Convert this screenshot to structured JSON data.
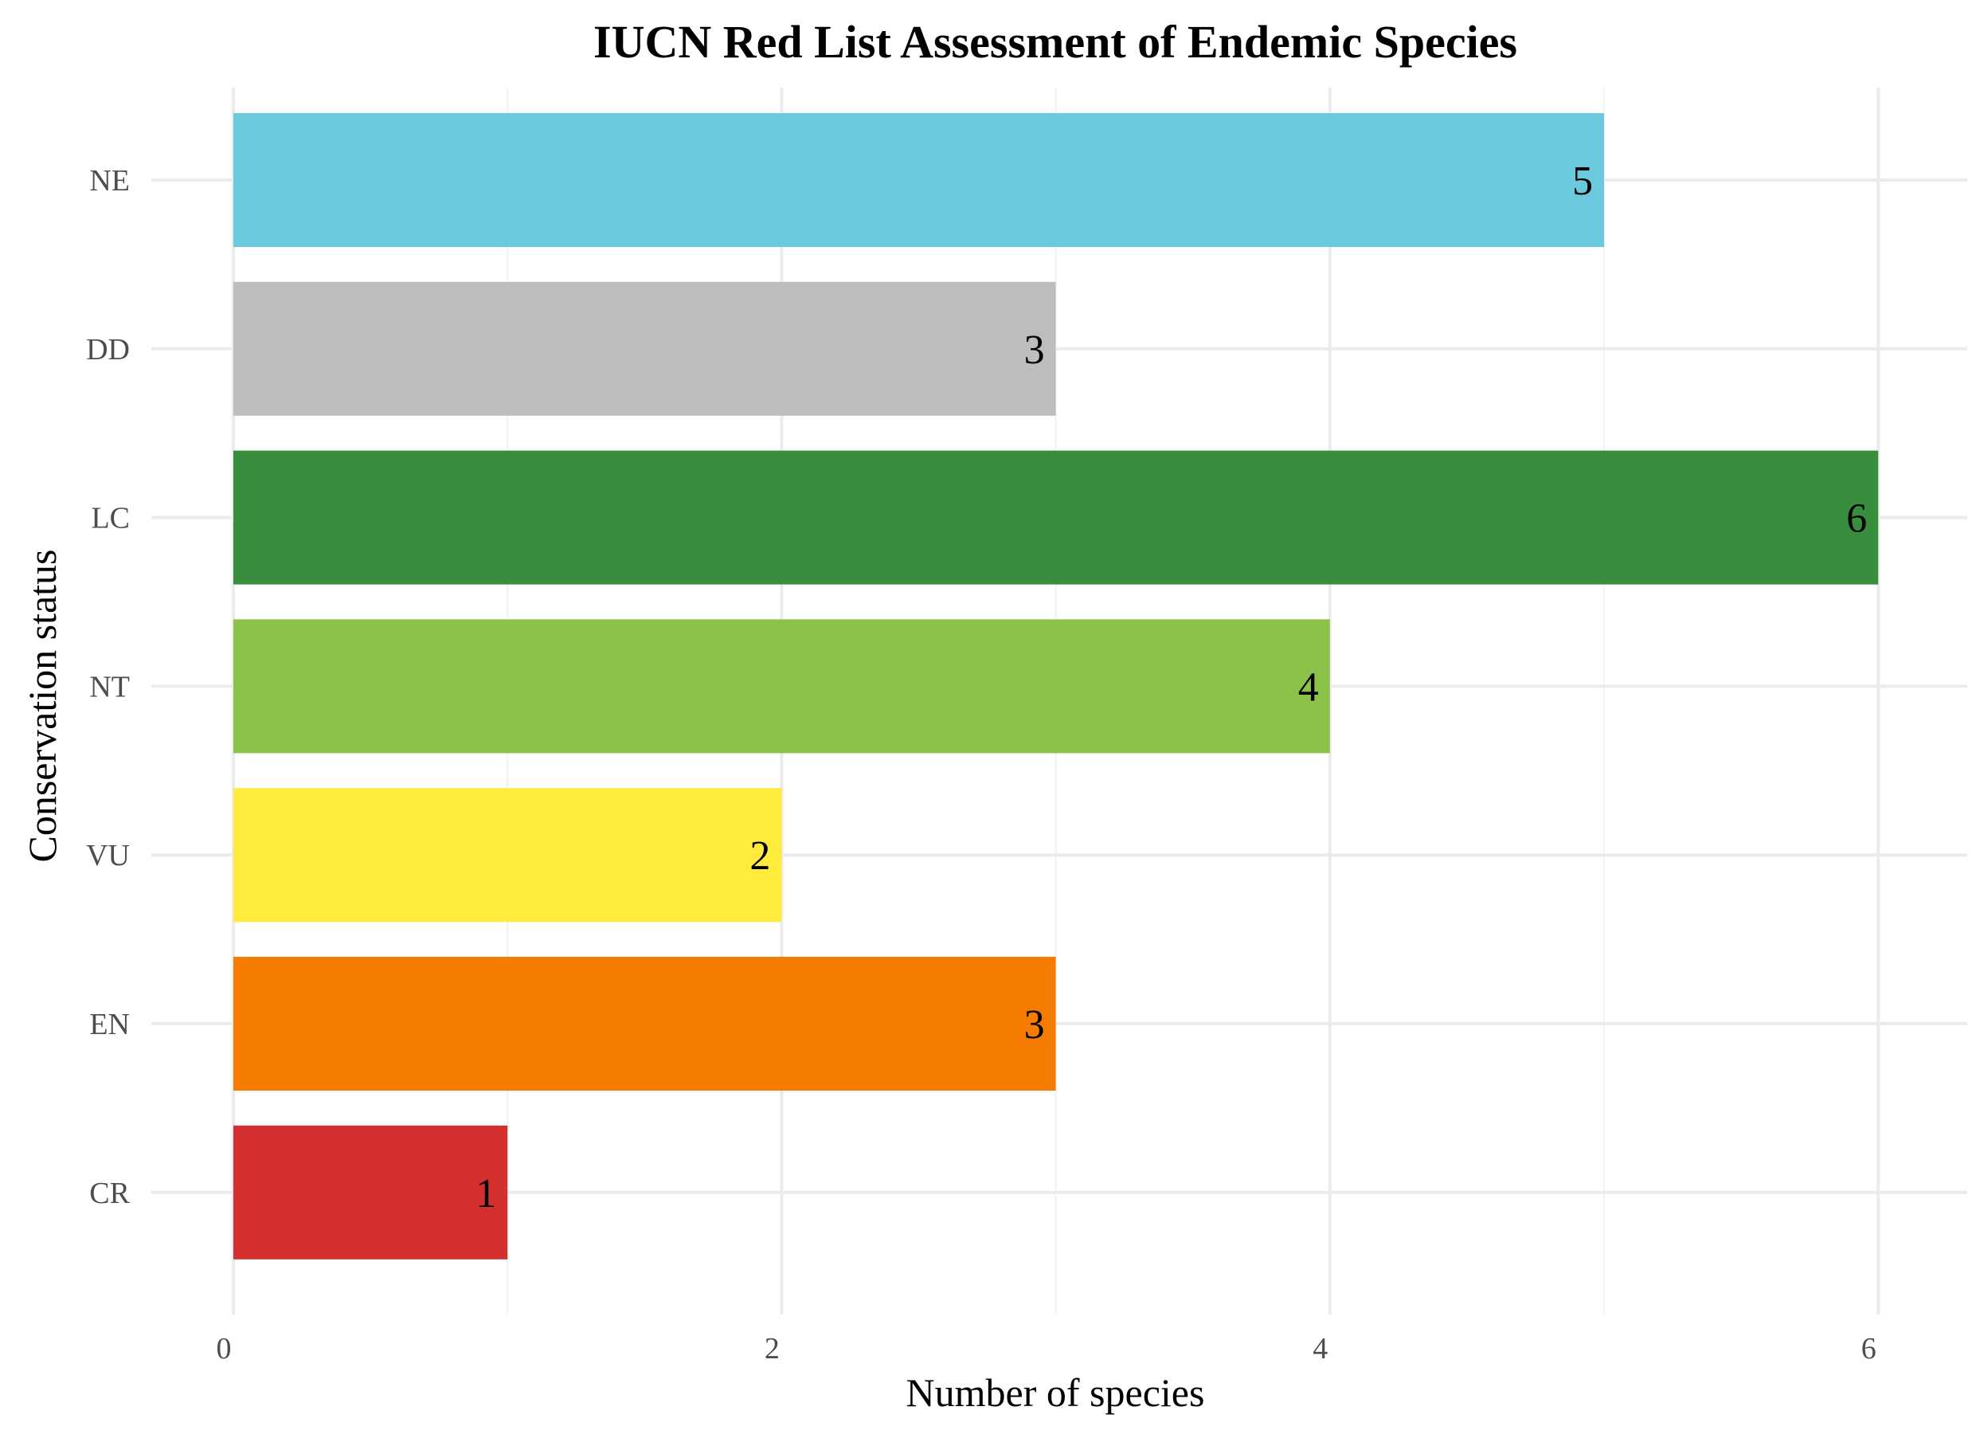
{
  "chart_data": {
    "type": "bar",
    "orientation": "horizontal",
    "title": "IUCN Red List Assessment of Endemic Species",
    "xlabel": "Number of species",
    "ylabel": "Conservation status",
    "categories": [
      "CR",
      "EN",
      "VU",
      "NT",
      "LC",
      "DD",
      "NE"
    ],
    "values": [
      1,
      3,
      2,
      4,
      6,
      3,
      5
    ],
    "colors": [
      "#d32f2f",
      "#f57c00",
      "#ffeb3b",
      "#8bc34a",
      "#388e3c",
      "#bdbdbd",
      "#6bc9de"
    ],
    "data_labels": [
      "1",
      "3",
      "2",
      "4",
      "6",
      "3",
      "5"
    ],
    "xlim": [
      0,
      6.3
    ],
    "x_ticks": [
      0,
      2,
      4,
      6
    ],
    "x_tick_labels": [
      "0",
      "2",
      "4",
      "6"
    ],
    "grid": true,
    "legend": "none"
  }
}
